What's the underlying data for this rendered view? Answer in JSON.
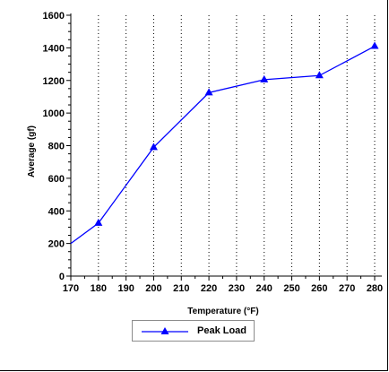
{
  "chart_data": {
    "type": "line",
    "xlabel": "Temperature (°F)",
    "ylabel": "Average (gf)",
    "xlim": [
      170,
      280
    ],
    "ylim": [
      0,
      1600
    ],
    "x_ticks": [
      170,
      180,
      190,
      200,
      210,
      220,
      230,
      240,
      250,
      260,
      270,
      280
    ],
    "y_ticks": [
      0,
      200,
      400,
      600,
      800,
      1000,
      1200,
      1400,
      1600
    ],
    "vertical_grid": true,
    "grid_style": "dotted",
    "legend_position": "bottom-center",
    "series": [
      {
        "name": "Peak Load",
        "color": "#0000ff",
        "marker": "triangle",
        "x": [
          170,
          180,
          200,
          220,
          240,
          260,
          280
        ],
        "y": [
          200,
          325,
          790,
          1125,
          1205,
          1230,
          1410
        ]
      }
    ]
  }
}
